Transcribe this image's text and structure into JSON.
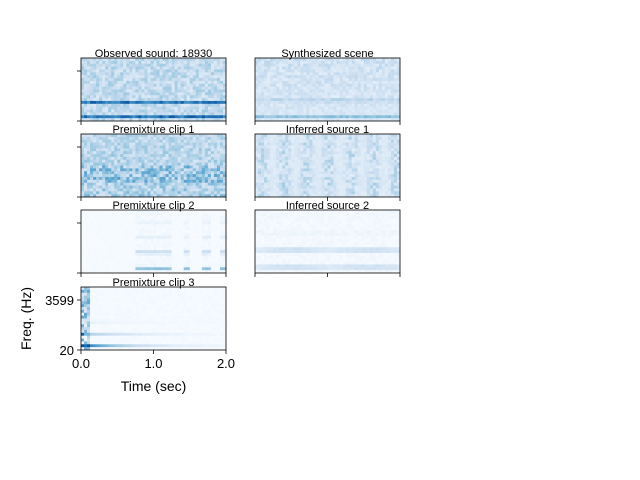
{
  "chart_data": {
    "type": "heatmap",
    "colormap": "Blues",
    "panels": [
      {
        "id": "observed",
        "title": "Observed sound: 18930",
        "kind": "noisy_harmonic"
      },
      {
        "id": "synth",
        "title": "Synthesized scene",
        "kind": "synth_harmonic"
      },
      {
        "id": "pre1",
        "title": "Premixture clip 1",
        "kind": "noise"
      },
      {
        "id": "inf1",
        "title": "Inferred source 1",
        "kind": "noise_flat"
      },
      {
        "id": "pre2",
        "title": "Premixture clip 2",
        "kind": "late_harmonic"
      },
      {
        "id": "inf2",
        "title": "Inferred source 2",
        "kind": "full_harmonic"
      },
      {
        "id": "pre3",
        "title": "Premixture clip 3",
        "kind": "decay_harmonic"
      }
    ],
    "xlabel": "Time (sec)",
    "ylabel": "Freq. (Hz)",
    "xlim": [
      0.0,
      2.0
    ],
    "xticks": [
      "0.0",
      "1.0",
      "2.0"
    ],
    "yticks": [
      "20",
      "3599"
    ]
  }
}
